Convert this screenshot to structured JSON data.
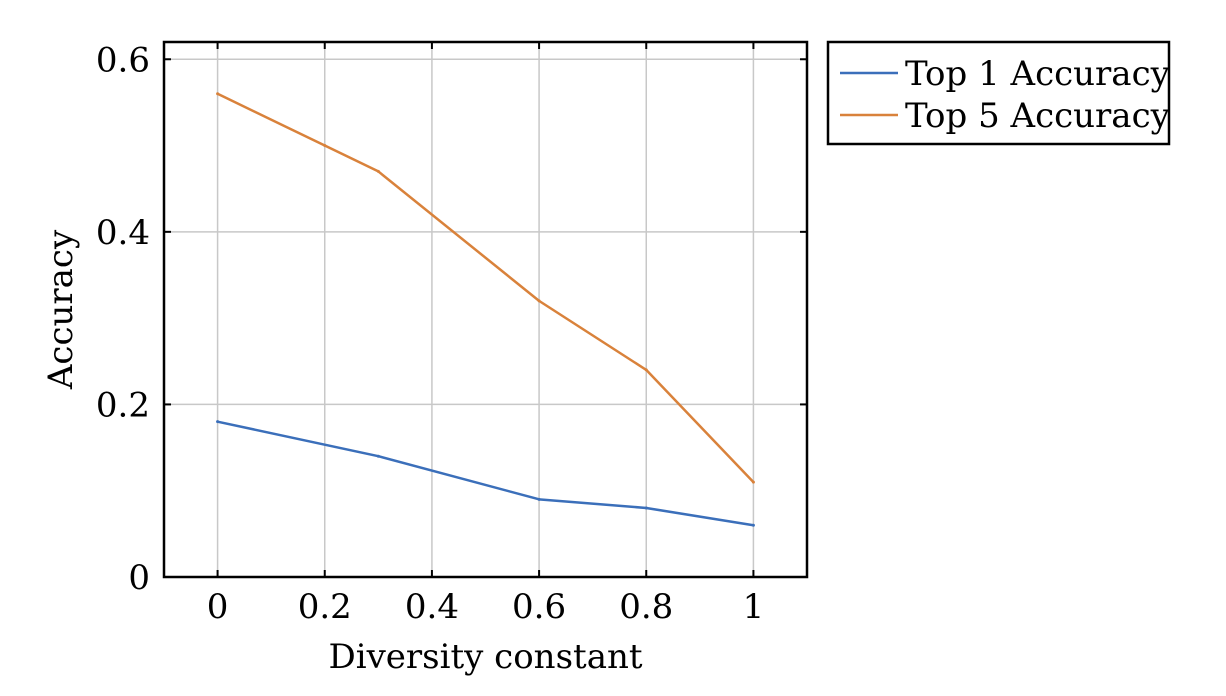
{
  "chart_data": {
    "type": "line",
    "xlabel": "Diversity constant",
    "ylabel": "Accuracy",
    "xlim": [
      -0.1,
      1.1
    ],
    "ylim": [
      0,
      0.62
    ],
    "xticks": [
      0,
      0.2,
      0.4,
      0.6,
      0.8,
      1
    ],
    "xtick_labels": [
      "0",
      "0.2",
      "0.4",
      "0.6",
      "0.8",
      "1"
    ],
    "yticks": [
      0,
      0.2,
      0.4,
      0.6
    ],
    "ytick_labels": [
      "0",
      "0.2",
      "0.4",
      "0.6"
    ],
    "grid": true,
    "legend_position": "outside-top-right",
    "series": [
      {
        "name": "Top 1 Accuracy",
        "color": "#3b6fba",
        "x": [
          0,
          0.3,
          0.6,
          0.8,
          1
        ],
        "y": [
          0.18,
          0.14,
          0.09,
          0.08,
          0.06
        ]
      },
      {
        "name": "Top 5 Accuracy",
        "color": "#d9823b",
        "x": [
          0,
          0.2,
          0.3,
          0.6,
          0.8,
          1
        ],
        "y": [
          0.56,
          0.5,
          0.47,
          0.32,
          0.24,
          0.11
        ]
      }
    ]
  }
}
